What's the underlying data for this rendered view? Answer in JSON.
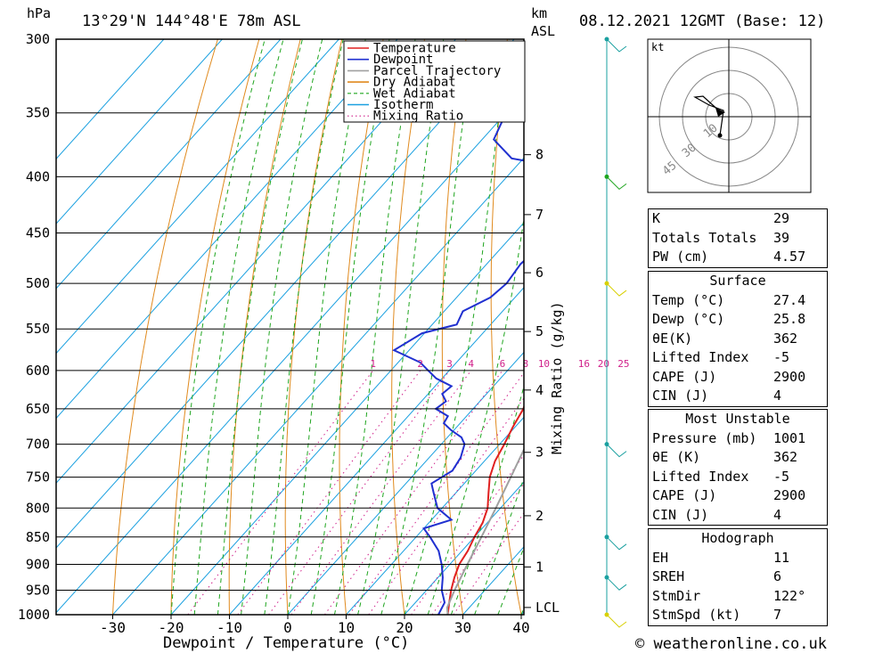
{
  "header": {
    "pressure_unit": "hPa",
    "location": "13°29'N  144°48'E  78m  ASL",
    "km_label": "km",
    "asl_label": "ASL",
    "datetime": "08.12.2021  12GMT  (Base: 12)"
  },
  "chart_data": {
    "type": "line",
    "title": "13°29'N  144°48'E  78m  ASL",
    "xlabel": "Dewpoint / Temperature (°C)",
    "ylabel": "hPa",
    "mixing_ratio_axis_label": "Mixing Ratio (g/kg)",
    "x_ticks": [
      "-30",
      "-20",
      "-10",
      "0",
      "10",
      "20",
      "30",
      "40"
    ],
    "p_ticks": [
      "300",
      "350",
      "400",
      "450",
      "500",
      "550",
      "600",
      "650",
      "700",
      "750",
      "800",
      "850",
      "900",
      "950",
      "1000"
    ],
    "km_ticks": [
      {
        "p": 382,
        "label": "8"
      },
      {
        "p": 433,
        "label": "7"
      },
      {
        "p": 489,
        "label": "6"
      },
      {
        "p": 553,
        "label": "5"
      },
      {
        "p": 625,
        "label": "4"
      },
      {
        "p": 712,
        "label": "3"
      },
      {
        "p": 813,
        "label": "2"
      },
      {
        "p": 905,
        "label": "1"
      },
      {
        "p": 985,
        "label": "LCL"
      }
    ],
    "mixing_ratio_labels": [
      "1",
      "2",
      "3",
      "4",
      "6",
      "8",
      "10",
      "16",
      "20",
      "25"
    ],
    "legend": [
      "Temperature",
      "Dewpoint",
      "Parcel Trajectory",
      "Dry Adiabat",
      "Wet Adiabat",
      "Isotherm",
      "Mixing Ratio"
    ],
    "legend_position": "top-right",
    "series": [
      {
        "name": "Temperature",
        "color": "#e02020",
        "points": [
          [
            1000,
            27.4
          ],
          [
            975,
            25.8
          ],
          [
            950,
            24.2
          ],
          [
            925,
            22.8
          ],
          [
            900,
            21.6
          ],
          [
            875,
            21.0
          ],
          [
            850,
            20.0
          ],
          [
            825,
            19.2
          ],
          [
            800,
            17.8
          ],
          [
            775,
            15.6
          ],
          [
            750,
            13.4
          ],
          [
            725,
            11.8
          ],
          [
            700,
            10.8
          ],
          [
            675,
            9.6
          ],
          [
            650,
            8.6
          ],
          [
            625,
            6.8
          ],
          [
            600,
            5.2
          ],
          [
            575,
            3.2
          ],
          [
            550,
            1.0
          ],
          [
            525,
            -1.2
          ],
          [
            500,
            -2.8
          ],
          [
            475,
            -5.4
          ],
          [
            450,
            -7.6
          ],
          [
            425,
            -10.4
          ],
          [
            400,
            -13.2
          ],
          [
            375,
            -16.4
          ],
          [
            355,
            -20.0
          ]
        ]
      },
      {
        "name": "Dewpoint",
        "color": "#2030d0",
        "points": [
          [
            1000,
            25.8
          ],
          [
            975,
            25.0
          ],
          [
            950,
            22.6
          ],
          [
            925,
            20.8
          ],
          [
            900,
            18.6
          ],
          [
            875,
            16.0
          ],
          [
            850,
            12.4
          ],
          [
            835,
            10.0
          ],
          [
            820,
            13.4
          ],
          [
            800,
            9.2
          ],
          [
            775,
            6.2
          ],
          [
            760,
            4.4
          ],
          [
            740,
            6.0
          ],
          [
            720,
            5.4
          ],
          [
            700,
            4.0
          ],
          [
            690,
            2.4
          ],
          [
            680,
            -0.4
          ],
          [
            670,
            -2.8
          ],
          [
            660,
            -3.2
          ],
          [
            650,
            -6.4
          ],
          [
            640,
            -5.8
          ],
          [
            630,
            -7.6
          ],
          [
            620,
            -7.2
          ],
          [
            610,
            -11.0
          ],
          [
            600,
            -13.6
          ],
          [
            590,
            -16.2
          ],
          [
            575,
            -22.6
          ],
          [
            555,
            -20.4
          ],
          [
            545,
            -15.8
          ],
          [
            530,
            -16.8
          ],
          [
            515,
            -14.2
          ],
          [
            500,
            -13.6
          ],
          [
            480,
            -14.2
          ],
          [
            460,
            -13.4
          ],
          [
            445,
            -17.4
          ],
          [
            430,
            -16.4
          ],
          [
            415,
            -15.4
          ],
          [
            400,
            -17.0
          ],
          [
            393,
            -21.0
          ],
          [
            385,
            -32.0
          ],
          [
            370,
            -38.0
          ],
          [
            350,
            -40.0
          ],
          [
            320,
            -46.0
          ],
          [
            300,
            -46.0
          ]
        ]
      },
      {
        "name": "Parcel Trajectory",
        "color": "#a0a0a0",
        "points": [
          [
            1000,
            27.4
          ],
          [
            985,
            26.2
          ],
          [
            950,
            24.8
          ],
          [
            900,
            23.0
          ],
          [
            850,
            21.2
          ],
          [
            800,
            19.2
          ],
          [
            750,
            17.0
          ],
          [
            700,
            14.6
          ],
          [
            650,
            12.0
          ],
          [
            600,
            9.2
          ],
          [
            550,
            6.0
          ],
          [
            500,
            2.4
          ],
          [
            450,
            -1.6
          ],
          [
            400,
            -6.4
          ],
          [
            375,
            -9.4
          ]
        ]
      }
    ],
    "x_range": [
      -40,
      40
    ],
    "p_range": [
      300,
      1000
    ]
  },
  "hodograph": {
    "unit_label": "kt",
    "ring_labels": [
      "10",
      "30",
      "45"
    ],
    "wind_points": [
      [
        1.5,
        10
      ],
      [
        4.0,
        12
      ],
      [
        5.0,
        13
      ],
      [
        5.5,
        14
      ],
      [
        6.0,
        16
      ],
      [
        3.0,
        19
      ],
      [
        1.0,
        21
      ]
    ]
  },
  "indices": {
    "rows": [
      {
        "name": "K",
        "value": "29"
      },
      {
        "name": "Totals Totals",
        "value": "39"
      },
      {
        "name": "PW (cm)",
        "value": "4.57"
      }
    ]
  },
  "surface": {
    "title": "Surface",
    "rows": [
      {
        "name": "Temp (°C)",
        "value": "27.4"
      },
      {
        "name": "Dewp (°C)",
        "value": "25.8"
      },
      {
        "name": "θE(K)",
        "value": "362"
      },
      {
        "name": "Lifted Index",
        "value": "-5"
      },
      {
        "name": "CAPE (J)",
        "value": "2900"
      },
      {
        "name": "CIN (J)",
        "value": "4"
      }
    ]
  },
  "most_unstable": {
    "title": "Most Unstable",
    "rows": [
      {
        "name": "Pressure (mb)",
        "value": "1001"
      },
      {
        "name": "θE (K)",
        "value": "362"
      },
      {
        "name": "Lifted Index",
        "value": "-5"
      },
      {
        "name": "CAPE (J)",
        "value": "2900"
      },
      {
        "name": "CIN (J)",
        "value": "4"
      }
    ]
  },
  "hodograph_table": {
    "title": "Hodograph",
    "rows": [
      {
        "name": "EH",
        "value": "11"
      },
      {
        "name": "SREH",
        "value": "6"
      },
      {
        "name": "StmDir",
        "value": "122°"
      },
      {
        "name": "StmSpd (kt)",
        "value": "7"
      }
    ]
  },
  "footer": {
    "copyright": "© weatheronline.co.uk"
  },
  "colors": {
    "temperature": "#e02020",
    "dewpoint": "#2030d0",
    "parcel": "#a0a0a0",
    "dry_adiabat": "#e08a1e",
    "wet_adiabat": "#1fa51f",
    "isotherm": "#1aa0e0",
    "mixing_ratio": "#d0208a"
  }
}
